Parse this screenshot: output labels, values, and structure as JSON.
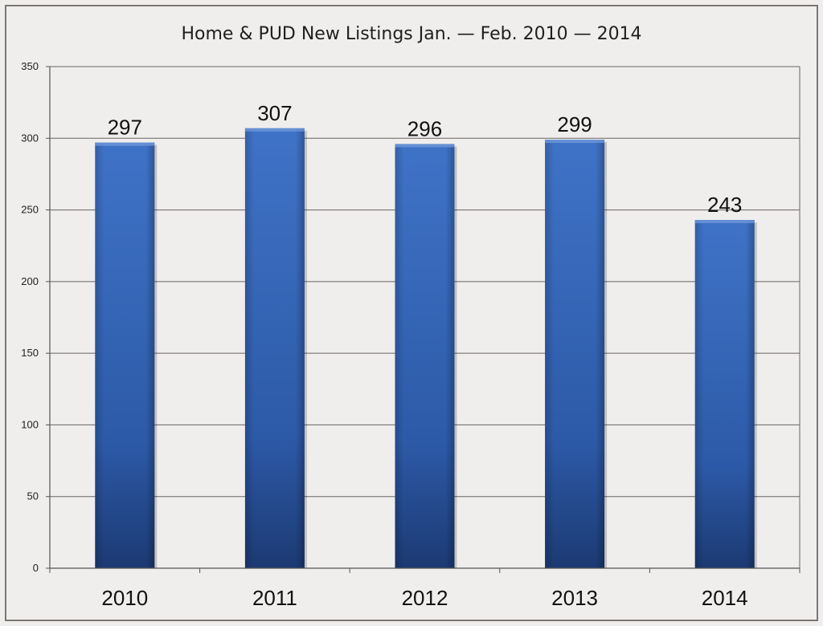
{
  "chart_data": {
    "type": "bar",
    "title": "Home & PUD New Listings Jan. — Feb. 2010 — 2014",
    "categories": [
      "2010",
      "2011",
      "2012",
      "2013",
      "2014"
    ],
    "values": [
      297,
      307,
      296,
      299,
      243
    ],
    "data_labels": [
      "297",
      "307",
      "296",
      "299",
      "243"
    ],
    "xlabel": "",
    "ylabel": "",
    "ylim": [
      0,
      350
    ],
    "yticks": [
      0,
      50,
      100,
      150,
      200,
      250,
      300,
      350
    ],
    "grid": true,
    "legend": "none",
    "colors": {
      "bar": "#3a69b8",
      "bar_dark": "#1f3f7c",
      "grid": "#6b6360",
      "background": "#efeeec"
    }
  }
}
